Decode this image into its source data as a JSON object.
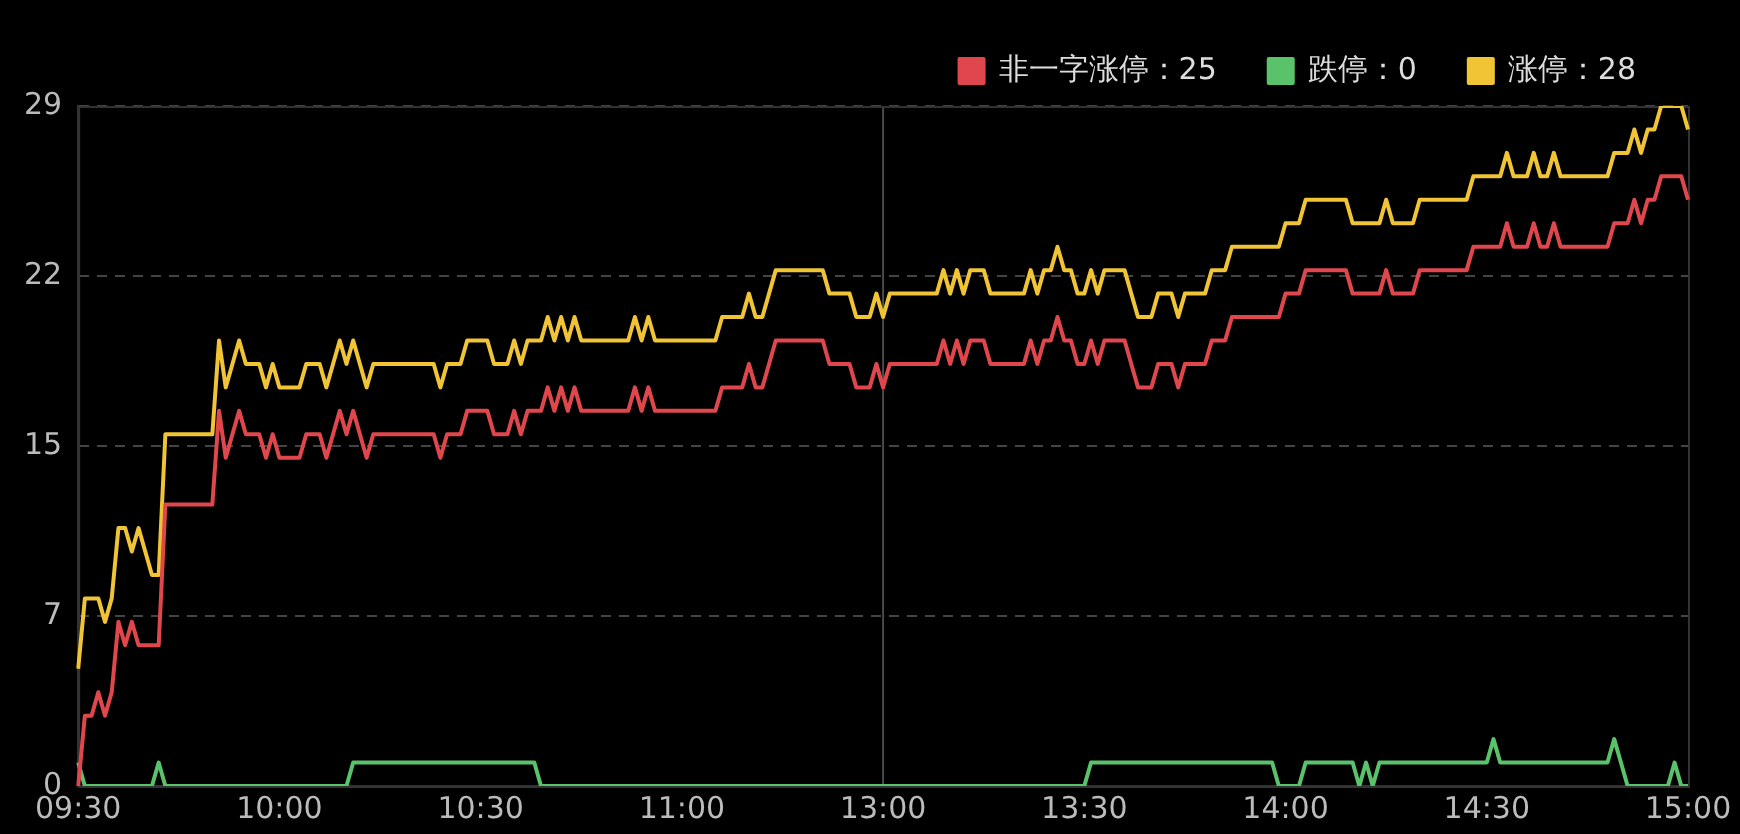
{
  "chart_data": {
    "type": "line",
    "categories": [
      "09:30",
      null,
      null,
      null,
      null,
      null,
      null,
      null,
      null,
      null,
      null,
      null,
      null,
      null,
      null,
      null,
      null,
      null,
      null,
      null,
      null,
      null,
      null,
      null,
      null,
      null,
      null,
      null,
      null,
      null,
      "10:00",
      null,
      null,
      null,
      null,
      null,
      null,
      null,
      null,
      null,
      null,
      null,
      null,
      null,
      null,
      null,
      null,
      null,
      null,
      null,
      null,
      null,
      null,
      null,
      null,
      null,
      null,
      null,
      null,
      null,
      "10:30",
      null,
      null,
      null,
      null,
      null,
      null,
      null,
      null,
      null,
      null,
      null,
      null,
      null,
      null,
      null,
      null,
      null,
      null,
      null,
      null,
      null,
      null,
      null,
      null,
      null,
      null,
      null,
      null,
      null,
      "11:00",
      null,
      null,
      null,
      null,
      null,
      null,
      null,
      null,
      null,
      null,
      null,
      null,
      null,
      null,
      null,
      null,
      null,
      null,
      null,
      null,
      null,
      null,
      null,
      null,
      null,
      null,
      null,
      null,
      null,
      "13:00",
      null,
      null,
      null,
      null,
      null,
      null,
      null,
      null,
      null,
      null,
      null,
      null,
      null,
      null,
      null,
      null,
      null,
      null,
      null,
      null,
      null,
      null,
      null,
      null,
      null,
      null,
      null,
      null,
      null,
      "13:30",
      null,
      null,
      null,
      null,
      null,
      null,
      null,
      null,
      null,
      null,
      null,
      null,
      null,
      null,
      null,
      null,
      null,
      null,
      null,
      null,
      null,
      null,
      null,
      null,
      null,
      null,
      null,
      null,
      null,
      "14:00",
      null,
      null,
      null,
      null,
      null,
      null,
      null,
      null,
      null,
      null,
      null,
      null,
      null,
      null,
      null,
      null,
      null,
      null,
      null,
      null,
      null,
      null,
      null,
      null,
      null,
      null,
      null,
      null,
      null,
      "14:30",
      null,
      null,
      null,
      null,
      null,
      null,
      null,
      null,
      null,
      null,
      null,
      null,
      null,
      null,
      null,
      null,
      null,
      null,
      null,
      null,
      null,
      null,
      null,
      null,
      null,
      null,
      null,
      null,
      null,
      "15:00"
    ],
    "ylim": [
      0,
      29
    ],
    "yticks": [
      0,
      {
        "value": 7.25,
        "label": "7"
      },
      {
        "value": 14.5,
        "label": "15"
      },
      {
        "value": 21.75,
        "label": "22"
      },
      29
    ],
    "grid": "y",
    "legend": "top right",
    "line_style": "solid",
    "ref_lines": [
      {
        "axis": "x",
        "value": "13:00",
        "color": "#4a4a4a"
      }
    ],
    "series": [
      {
        "name": "非一字涨停：25",
        "color": "#e0474c",
        "values": [
          0,
          3,
          3,
          4,
          3,
          4,
          7,
          6,
          7,
          6,
          6,
          6,
          6,
          12,
          12,
          12,
          12,
          12,
          12,
          12,
          12,
          16,
          14,
          15,
          16,
          15,
          15,
          15,
          14,
          15,
          14,
          14,
          14,
          14,
          15,
          15,
          15,
          14,
          15,
          16,
          15,
          16,
          15,
          14,
          15,
          15,
          15,
          15,
          15,
          15,
          15,
          15,
          15,
          15,
          14,
          15,
          15,
          15,
          16,
          16,
          16,
          16,
          15,
          15,
          15,
          16,
          15,
          16,
          16,
          16,
          17,
          16,
          17,
          16,
          17,
          16,
          16,
          16,
          16,
          16,
          16,
          16,
          16,
          17,
          16,
          17,
          16,
          16,
          16,
          16,
          16,
          16,
          16,
          16,
          16,
          16,
          17,
          17,
          17,
          17,
          18,
          17,
          17,
          18,
          19,
          19,
          19,
          19,
          19,
          19,
          19,
          19,
          18,
          18,
          18,
          18,
          17,
          17,
          17,
          18,
          17,
          18,
          18,
          18,
          18,
          18,
          18,
          18,
          18,
          19,
          18,
          19,
          18,
          19,
          19,
          19,
          18,
          18,
          18,
          18,
          18,
          18,
          19,
          18,
          19,
          19,
          20,
          19,
          19,
          18,
          18,
          19,
          18,
          19,
          19,
          19,
          19,
          18,
          17,
          17,
          17,
          18,
          18,
          18,
          17,
          18,
          18,
          18,
          18,
          19,
          19,
          19,
          20,
          20,
          20,
          20,
          20,
          20,
          20,
          20,
          21,
          21,
          21,
          22,
          22,
          22,
          22,
          22,
          22,
          22,
          21,
          21,
          21,
          21,
          21,
          22,
          21,
          21,
          21,
          21,
          22,
          22,
          22,
          22,
          22,
          22,
          22,
          22,
          23,
          23,
          23,
          23,
          23,
          24,
          23,
          23,
          23,
          24,
          23,
          23,
          24,
          23,
          23,
          23,
          23,
          23,
          23,
          23,
          23,
          24,
          24,
          24,
          25,
          24,
          25,
          25,
          26,
          26,
          26,
          26,
          25
        ]
      },
      {
        "name": "跌停：0",
        "color": "#5ac26a",
        "values": [
          1,
          0,
          0,
          0,
          0,
          0,
          0,
          0,
          0,
          0,
          0,
          0,
          1,
          0,
          0,
          0,
          0,
          0,
          0,
          0,
          0,
          0,
          0,
          0,
          0,
          0,
          0,
          0,
          0,
          0,
          0,
          0,
          0,
          0,
          0,
          0,
          0,
          0,
          0,
          0,
          0,
          1,
          1,
          1,
          1,
          1,
          1,
          1,
          1,
          1,
          1,
          1,
          1,
          1,
          1,
          1,
          1,
          1,
          1,
          1,
          1,
          1,
          1,
          1,
          1,
          1,
          1,
          1,
          1,
          0,
          0,
          0,
          0,
          0,
          0,
          0,
          0,
          0,
          0,
          0,
          0,
          0,
          0,
          0,
          0,
          0,
          0,
          0,
          0,
          0,
          0,
          0,
          0,
          0,
          0,
          0,
          0,
          0,
          0,
          0,
          0,
          0,
          0,
          0,
          0,
          0,
          0,
          0,
          0,
          0,
          0,
          0,
          0,
          0,
          0,
          0,
          0,
          0,
          0,
          0,
          0,
          0,
          0,
          0,
          0,
          0,
          0,
          0,
          0,
          0,
          0,
          0,
          0,
          0,
          0,
          0,
          0,
          0,
          0,
          0,
          0,
          0,
          0,
          0,
          0,
          0,
          0,
          0,
          0,
          0,
          0,
          1,
          1,
          1,
          1,
          1,
          1,
          1,
          1,
          1,
          1,
          1,
          1,
          1,
          1,
          1,
          1,
          1,
          1,
          1,
          1,
          1,
          1,
          1,
          1,
          1,
          1,
          1,
          1,
          0,
          0,
          0,
          0,
          1,
          1,
          1,
          1,
          1,
          1,
          1,
          1,
          0,
          1,
          0,
          1,
          1,
          1,
          1,
          1,
          1,
          1,
          1,
          1,
          1,
          1,
          1,
          1,
          1,
          1,
          1,
          1,
          2,
          1,
          1,
          1,
          1,
          1,
          1,
          1,
          1,
          1,
          1,
          1,
          1,
          1,
          1,
          1,
          1,
          1,
          2,
          1,
          0,
          0,
          0,
          0,
          0,
          0,
          0,
          1,
          0,
          0
        ]
      },
      {
        "name": "涨停：28",
        "color": "#f0c434",
        "values": [
          5,
          8,
          8,
          8,
          7,
          8,
          11,
          11,
          10,
          11,
          10,
          9,
          9,
          15,
          15,
          15,
          15,
          15,
          15,
          15,
          15,
          19,
          17,
          18,
          19,
          18,
          18,
          18,
          17,
          18,
          17,
          17,
          17,
          17,
          18,
          18,
          18,
          17,
          18,
          19,
          18,
          19,
          18,
          17,
          18,
          18,
          18,
          18,
          18,
          18,
          18,
          18,
          18,
          18,
          17,
          18,
          18,
          18,
          19,
          19,
          19,
          19,
          18,
          18,
          18,
          19,
          18,
          19,
          19,
          19,
          20,
          19,
          20,
          19,
          20,
          19,
          19,
          19,
          19,
          19,
          19,
          19,
          19,
          20,
          19,
          20,
          19,
          19,
          19,
          19,
          19,
          19,
          19,
          19,
          19,
          19,
          20,
          20,
          20,
          20,
          21,
          20,
          20,
          21,
          22,
          22,
          22,
          22,
          22,
          22,
          22,
          22,
          21,
          21,
          21,
          21,
          20,
          20,
          20,
          21,
          20,
          21,
          21,
          21,
          21,
          21,
          21,
          21,
          21,
          22,
          21,
          22,
          21,
          22,
          22,
          22,
          21,
          21,
          21,
          21,
          21,
          21,
          22,
          21,
          22,
          22,
          23,
          22,
          22,
          21,
          21,
          22,
          21,
          22,
          22,
          22,
          22,
          21,
          20,
          20,
          20,
          21,
          21,
          21,
          20,
          21,
          21,
          21,
          21,
          22,
          22,
          22,
          23,
          23,
          23,
          23,
          23,
          23,
          23,
          23,
          24,
          24,
          24,
          25,
          25,
          25,
          25,
          25,
          25,
          25,
          24,
          24,
          24,
          24,
          24,
          25,
          24,
          24,
          24,
          24,
          25,
          25,
          25,
          25,
          25,
          25,
          25,
          25,
          26,
          26,
          26,
          26,
          26,
          27,
          26,
          26,
          26,
          27,
          26,
          26,
          27,
          26,
          26,
          26,
          26,
          26,
          26,
          26,
          26,
          27,
          27,
          27,
          28,
          27,
          28,
          28,
          29,
          29,
          29,
          29,
          28
        ]
      }
    ]
  }
}
